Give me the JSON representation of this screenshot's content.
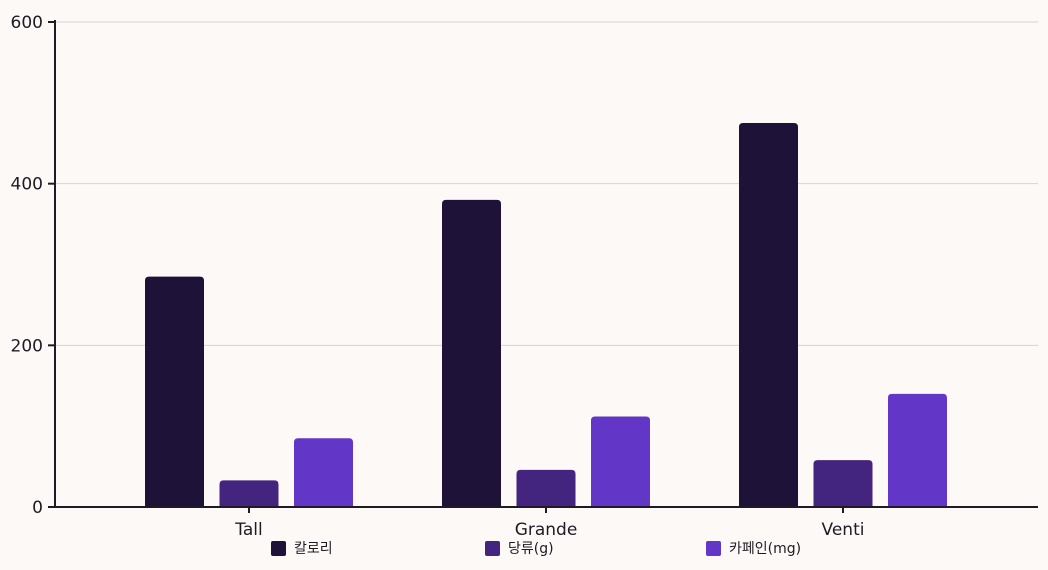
{
  "chart_data": {
    "type": "bar",
    "categories": [
      "Tall",
      "Grande",
      "Venti"
    ],
    "series": [
      {
        "name": "칼로리",
        "values": [
          285,
          380,
          475
        ],
        "color": "#1e1238"
      },
      {
        "name": "당류(g)",
        "values": [
          33,
          46,
          58
        ],
        "color": "#43247f"
      },
      {
        "name": "카페인(mg)",
        "values": [
          85,
          112,
          140
        ],
        "color": "#6236c6"
      }
    ],
    "ylim": [
      0,
      600
    ],
    "yticks": [
      0,
      200,
      400,
      600
    ],
    "grid": true,
    "legend_position": "bottom",
    "title": "",
    "xlabel": "",
    "ylabel": ""
  }
}
